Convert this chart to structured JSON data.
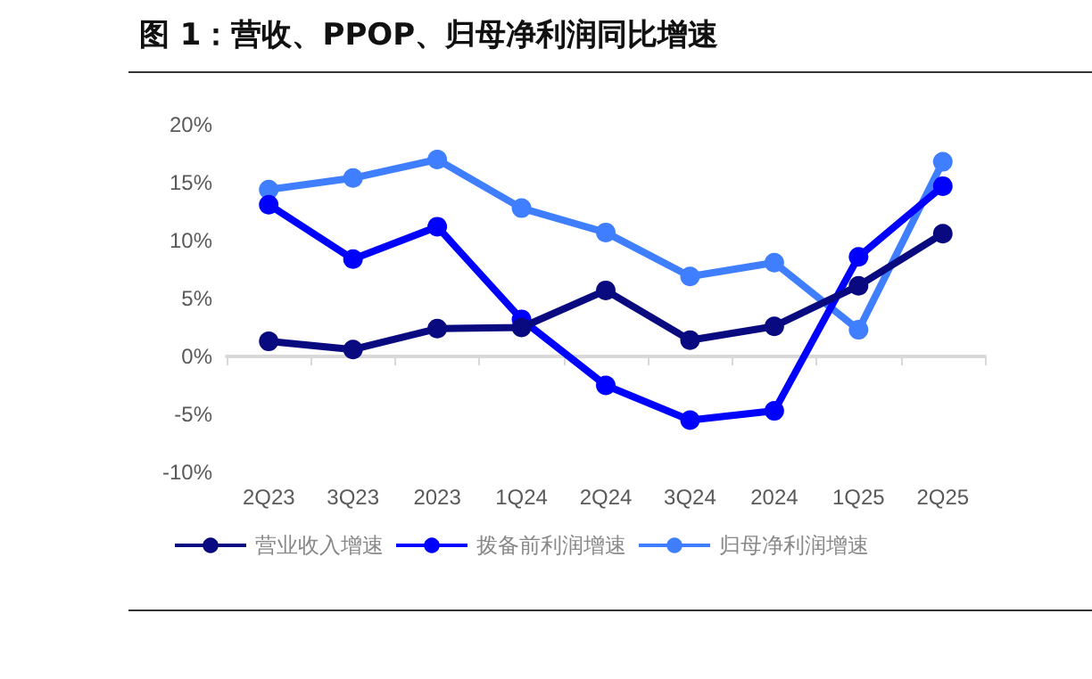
{
  "chart_data": {
    "type": "line",
    "title": "图 1：营收、PPOP、归母净利润同比增速",
    "categories": [
      "2Q23",
      "3Q23",
      "2023",
      "1Q24",
      "2Q24",
      "3Q24",
      "2024",
      "1Q25",
      "2Q25"
    ],
    "series": [
      {
        "name": "营业收入增速",
        "color": "#0a0a80",
        "values": [
          1.3,
          0.6,
          2.4,
          2.5,
          5.7,
          1.4,
          2.6,
          6.1,
          10.6
        ]
      },
      {
        "name": "拨备前利润增速",
        "color": "#0000ff",
        "values": [
          13.1,
          8.4,
          11.2,
          3.2,
          -2.5,
          -5.5,
          -4.7,
          8.6,
          14.7
        ]
      },
      {
        "name": "归母净利润增速",
        "color": "#3f7fff",
        "values": [
          14.4,
          15.4,
          17.0,
          12.8,
          10.7,
          6.9,
          8.1,
          2.3,
          16.8
        ]
      }
    ],
    "ylim": [
      -10,
      20
    ],
    "yticks": [
      {
        "value": -10,
        "label": "-10%"
      },
      {
        "value": -5,
        "label": "-5%"
      },
      {
        "value": 0,
        "label": "0%"
      },
      {
        "value": 5,
        "label": "5%"
      },
      {
        "value": 10,
        "label": "10%"
      },
      {
        "value": 15,
        "label": "15%"
      },
      {
        "value": 20,
        "label": "20%"
      }
    ],
    "legend": "bottom",
    "marker": "circle",
    "line_style": "solid"
  }
}
